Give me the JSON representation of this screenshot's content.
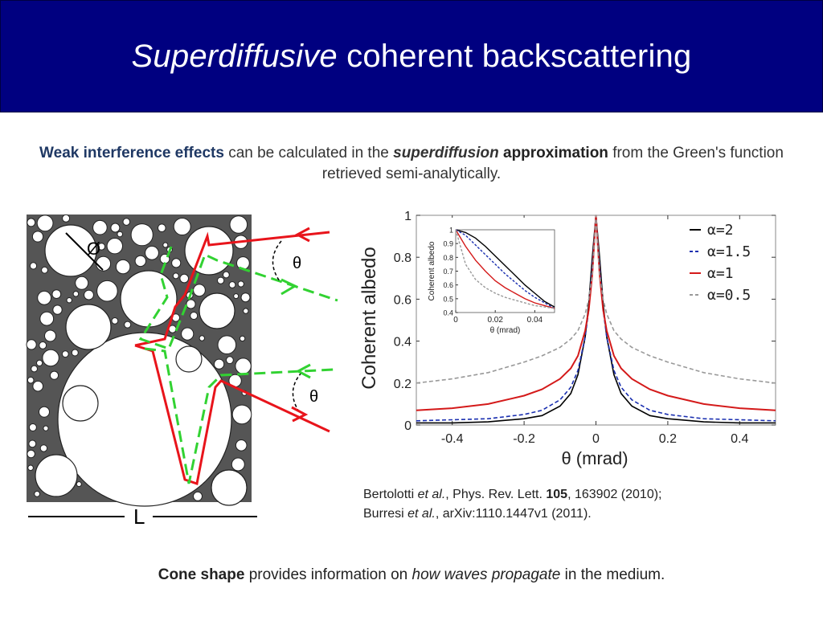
{
  "slide": {
    "title_italic": "Superdiffusive",
    "title_rest": " coherent backscattering",
    "intro": {
      "part1_bold": "Weak interference effects",
      "part2": " can be calculated in the ",
      "part3_bold_italic": "superdiffusion",
      "part4_bold": " approximation",
      "part5": " from the Green's function retrieved semi-analytically."
    },
    "conclusion": {
      "part1_bold": "Cone shape",
      "part2": " provides information on ",
      "part3_italic": "how waves propagate",
      "part4": " in the medium."
    },
    "references": {
      "r1_a": "Bertolotti ",
      "r1_etal": "et al.",
      "r1_b": ", Phys. Rev. Lett. ",
      "r1_vol": "105",
      "r1_c": ", 163902 (2010);",
      "r2_a": "Burresi ",
      "r2_etal": "et al.",
      "r2_b": ", arXiv:1110.1447v1 (2011)."
    }
  },
  "medium_diagram": {
    "diameter_label": "Ø",
    "theta_label_top": "θ",
    "theta_label_bottom": "θ",
    "thickness_label": "L",
    "colors": {
      "red_path": "#e8141b",
      "green_path": "#32d232",
      "background": "#555555"
    }
  },
  "chart_data": {
    "type": "line",
    "ylabel": "Coherent albedo",
    "xlabel": "θ (mrad)",
    "xlim": [
      -0.5,
      0.5
    ],
    "ylim": [
      0,
      1
    ],
    "xticks": [
      -0.4,
      -0.2,
      0,
      0.2,
      0.4
    ],
    "xtick_labels": [
      "-0.4",
      "-0.2",
      "0",
      "0.2",
      "0.4"
    ],
    "yticks": [
      0,
      0.2,
      0.4,
      0.6,
      0.8,
      1
    ],
    "ytick_labels": [
      "0",
      "0.2",
      "0.4",
      "0.6",
      "0.8",
      "1"
    ],
    "legend_position": "top-right",
    "series": [
      {
        "name": "α=2",
        "color": "#000000",
        "dash": "solid",
        "x": [
          -0.5,
          -0.4,
          -0.3,
          -0.2,
          -0.15,
          -0.1,
          -0.07,
          -0.05,
          -0.03,
          -0.02,
          -0.01,
          0,
          0.01,
          0.02,
          0.03,
          0.05,
          0.07,
          0.1,
          0.15,
          0.2,
          0.3,
          0.4,
          0.5
        ],
        "y": [
          0.01,
          0.01,
          0.015,
          0.03,
          0.045,
          0.09,
          0.15,
          0.24,
          0.42,
          0.58,
          0.8,
          1,
          0.8,
          0.58,
          0.42,
          0.24,
          0.15,
          0.09,
          0.045,
          0.03,
          0.015,
          0.01,
          0.01
        ]
      },
      {
        "name": "α=1.5",
        "color": "#1a2fb0",
        "dash": "dashed",
        "x": [
          -0.5,
          -0.4,
          -0.3,
          -0.2,
          -0.15,
          -0.1,
          -0.07,
          -0.05,
          -0.03,
          -0.02,
          -0.01,
          0,
          0.01,
          0.02,
          0.03,
          0.05,
          0.07,
          0.1,
          0.15,
          0.2,
          0.3,
          0.4,
          0.5
        ],
        "y": [
          0.02,
          0.025,
          0.03,
          0.05,
          0.07,
          0.12,
          0.18,
          0.26,
          0.42,
          0.55,
          0.76,
          1,
          0.76,
          0.55,
          0.42,
          0.26,
          0.18,
          0.12,
          0.07,
          0.05,
          0.03,
          0.025,
          0.02
        ]
      },
      {
        "name": "α=1",
        "color": "#d41a1a",
        "dash": "solid",
        "x": [
          -0.5,
          -0.4,
          -0.3,
          -0.2,
          -0.15,
          -0.1,
          -0.07,
          -0.05,
          -0.03,
          -0.02,
          -0.01,
          0,
          0.01,
          0.02,
          0.03,
          0.05,
          0.07,
          0.1,
          0.15,
          0.2,
          0.3,
          0.4,
          0.5
        ],
        "y": [
          0.07,
          0.08,
          0.1,
          0.14,
          0.17,
          0.22,
          0.27,
          0.33,
          0.45,
          0.55,
          0.72,
          1,
          0.72,
          0.55,
          0.45,
          0.33,
          0.27,
          0.22,
          0.17,
          0.14,
          0.1,
          0.08,
          0.07
        ]
      },
      {
        "name": "α=0.5",
        "color": "#999999",
        "dash": "dashed",
        "x": [
          -0.5,
          -0.4,
          -0.3,
          -0.2,
          -0.15,
          -0.1,
          -0.07,
          -0.05,
          -0.03,
          -0.02,
          -0.01,
          0,
          0.01,
          0.02,
          0.03,
          0.05,
          0.07,
          0.1,
          0.15,
          0.2,
          0.3,
          0.4,
          0.5
        ],
        "y": [
          0.2,
          0.22,
          0.25,
          0.3,
          0.33,
          0.37,
          0.41,
          0.45,
          0.53,
          0.6,
          0.72,
          1,
          0.72,
          0.6,
          0.53,
          0.45,
          0.41,
          0.37,
          0.33,
          0.3,
          0.25,
          0.22,
          0.2
        ]
      }
    ],
    "inset": {
      "ylabel": "Coherent albedo",
      "xlabel": "θ (mrad)",
      "xlim": [
        0,
        0.05
      ],
      "ylim": [
        0.4,
        1
      ],
      "xticks": [
        0,
        0.02,
        0.04
      ],
      "xtick_labels": [
        "0",
        "0.02",
        "0.04"
      ],
      "yticks": [
        0.4,
        0.5,
        0.6,
        0.7,
        0.8,
        0.9,
        1
      ],
      "ytick_labels": [
        "0.4",
        "0.5",
        "0.6",
        "0.7",
        "0.8",
        "0.9",
        "1"
      ],
      "series": [
        {
          "color": "#000000",
          "dash": "solid",
          "x": [
            0,
            0.005,
            0.01,
            0.015,
            0.02,
            0.025,
            0.03,
            0.035,
            0.04,
            0.045,
            0.05
          ],
          "y": [
            1,
            0.98,
            0.94,
            0.88,
            0.81,
            0.74,
            0.67,
            0.6,
            0.54,
            0.48,
            0.44
          ]
        },
        {
          "color": "#1a2fb0",
          "dash": "dashed",
          "x": [
            0,
            0.005,
            0.01,
            0.015,
            0.02,
            0.025,
            0.03,
            0.035,
            0.04,
            0.045,
            0.05
          ],
          "y": [
            1,
            0.96,
            0.89,
            0.82,
            0.75,
            0.68,
            0.62,
            0.56,
            0.51,
            0.47,
            0.43
          ]
        },
        {
          "color": "#d41a1a",
          "dash": "solid",
          "x": [
            0,
            0.005,
            0.01,
            0.015,
            0.02,
            0.025,
            0.03,
            0.035,
            0.04,
            0.045,
            0.05
          ],
          "y": [
            1,
            0.88,
            0.78,
            0.7,
            0.63,
            0.58,
            0.54,
            0.5,
            0.47,
            0.45,
            0.43
          ]
        },
        {
          "color": "#999999",
          "dash": "dashed",
          "x": [
            0,
            0.005,
            0.01,
            0.015,
            0.02,
            0.025,
            0.03,
            0.035,
            0.04,
            0.045,
            0.05
          ],
          "y": [
            1,
            0.75,
            0.64,
            0.58,
            0.54,
            0.51,
            0.49,
            0.47,
            0.45,
            0.44,
            0.43
          ]
        }
      ]
    }
  }
}
